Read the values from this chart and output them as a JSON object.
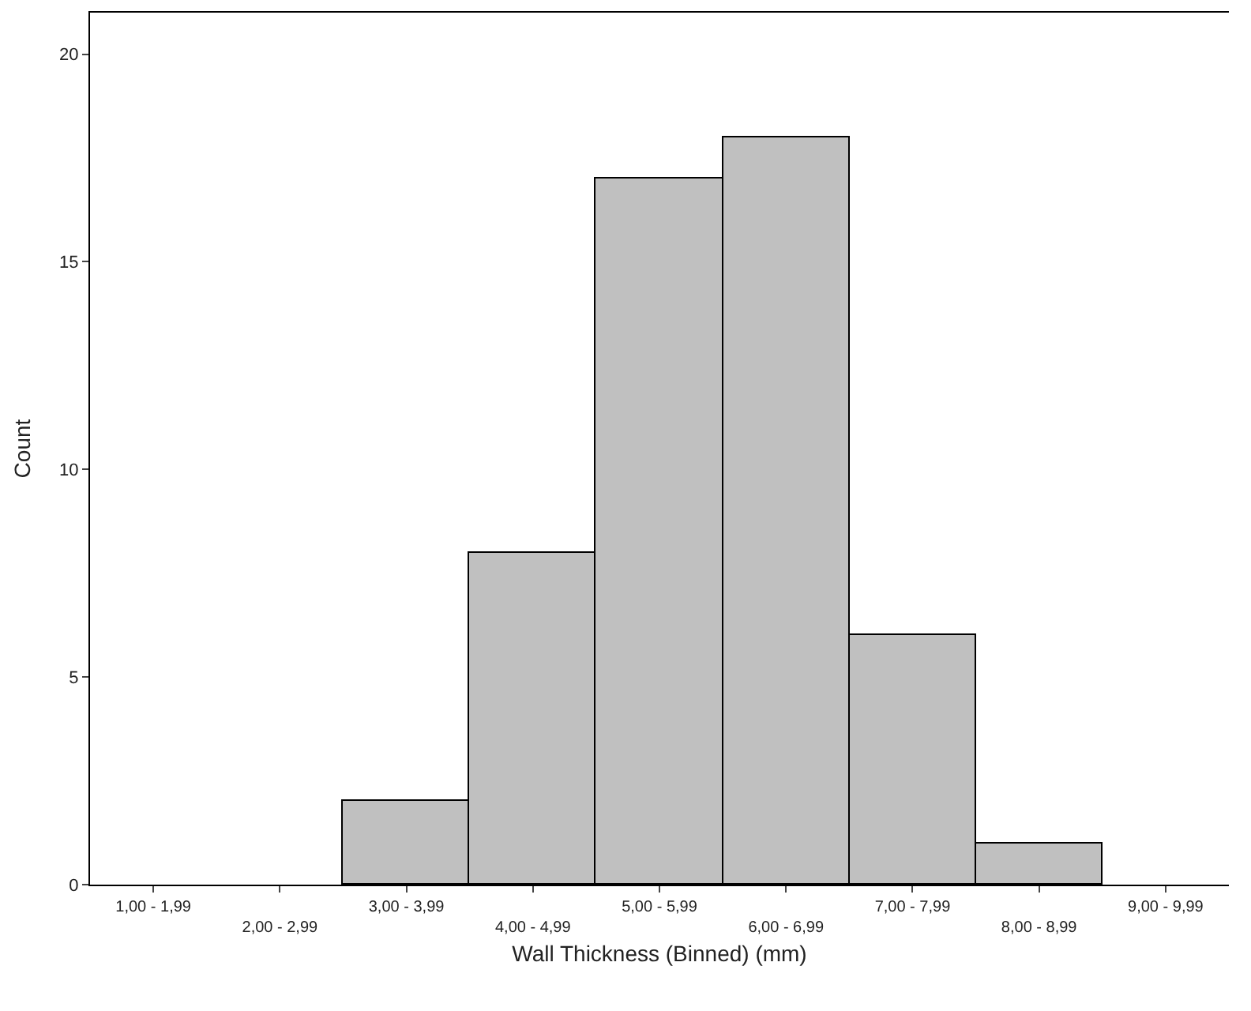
{
  "chart_data": {
    "type": "bar",
    "xlabel": "Wall Thickness (Binned) (mm)",
    "ylabel": "Count",
    "categories": [
      "1,00 - 1,99",
      "2,00 - 2,99",
      "3,00 - 3,99",
      "4,00 - 4,99",
      "5,00 - 5,99",
      "6,00 - 6,99",
      "7,00 - 7,99",
      "8,00 - 8,99",
      "9,00 - 9,99"
    ],
    "values": [
      0,
      0,
      2,
      8,
      17,
      18,
      6,
      1,
      0
    ],
    "color": "#c0c0c0",
    "ylim": [
      0,
      21
    ],
    "yticks": [
      0,
      5,
      10,
      15,
      20
    ]
  }
}
